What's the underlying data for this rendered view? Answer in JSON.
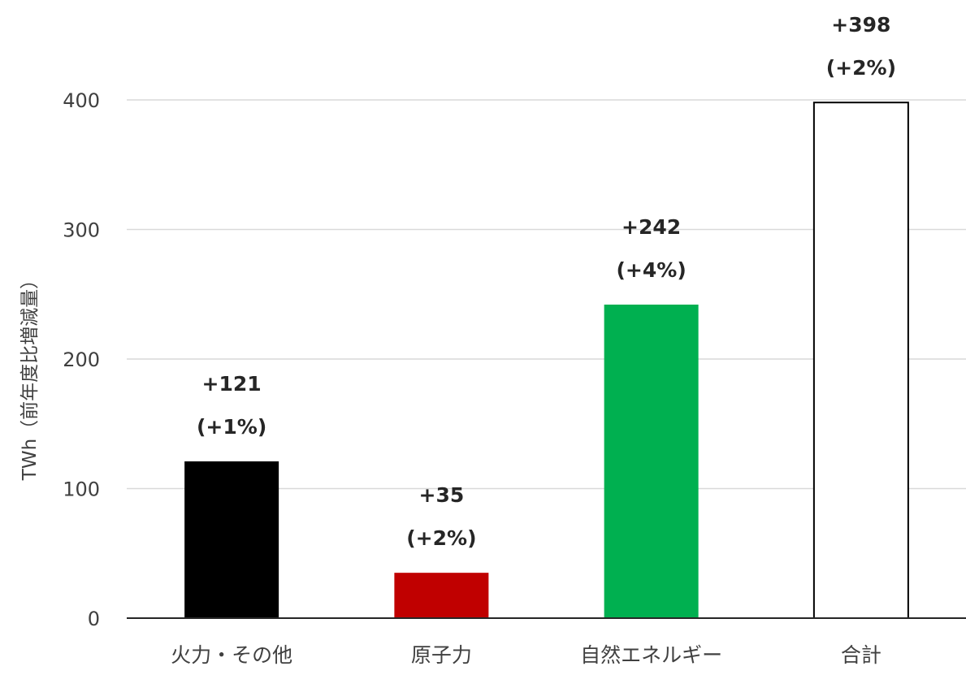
{
  "chart_data": {
    "type": "bar",
    "title": "",
    "xlabel": "",
    "ylabel": "TWh（前年度比増減量）",
    "ylim": [
      0,
      400
    ],
    "yticks": [
      0,
      100,
      200,
      300,
      400
    ],
    "grid": true,
    "categories": [
      "火力・その他",
      "原子力",
      "自然エネルギー",
      "合計"
    ],
    "values": [
      121,
      35,
      242,
      398
    ],
    "data_labels": [
      {
        "value": "+121",
        "percent": "(+1%)"
      },
      {
        "value": "+35",
        "percent": "(+2%)"
      },
      {
        "value": "+242",
        "percent": "(+4%)"
      },
      {
        "value": "+398",
        "percent": "(+2%)"
      }
    ],
    "colors": [
      "#000000",
      "#c00000",
      "#00b050",
      "#ffffff"
    ],
    "outline_color": "#000000"
  }
}
